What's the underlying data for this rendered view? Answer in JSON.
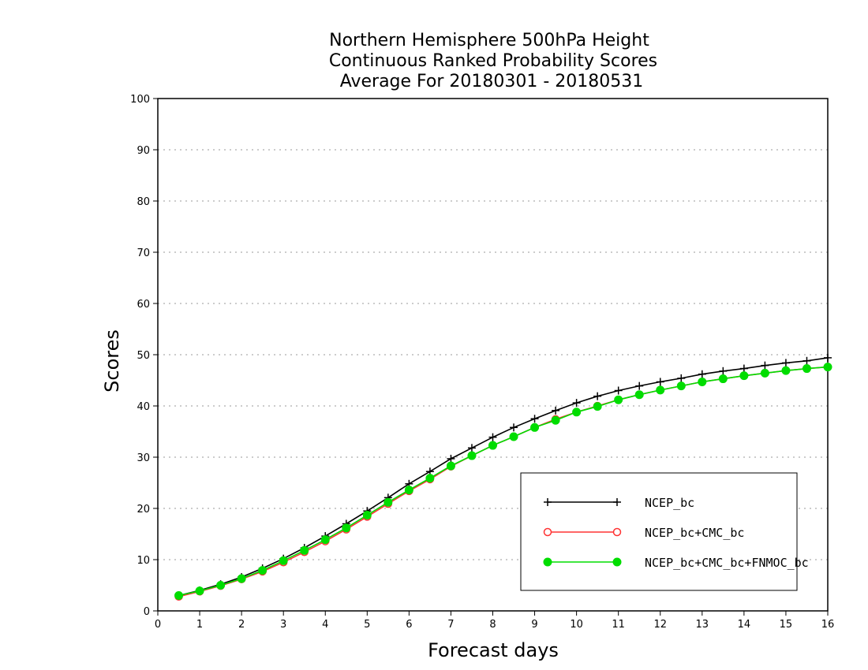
{
  "chart_data": {
    "type": "line",
    "title": [
      "Northern Hemisphere 500hPa Height",
      "Continuous Ranked Probability Scores",
      "Average For 20180301 - 20180531"
    ],
    "xlabel": "Forecast days",
    "ylabel": "Scores",
    "xlim": [
      0,
      16
    ],
    "ylim": [
      0,
      100
    ],
    "xticks": [
      "0",
      "1",
      "2",
      "3",
      "4",
      "5",
      "6",
      "7",
      "8",
      "9",
      "10",
      "11",
      "12",
      "13",
      "14",
      "15",
      "16"
    ],
    "yticks": [
      "0",
      "10",
      "20",
      "30",
      "40",
      "50",
      "60",
      "70",
      "80",
      "90",
      "100"
    ],
    "grid": "horizontal dotted",
    "legend_position": "bottom-right",
    "x": [
      0.5,
      1,
      1.5,
      2,
      2.5,
      3,
      3.5,
      4,
      4.5,
      5,
      5.5,
      6,
      6.5,
      7,
      7.5,
      8,
      8.5,
      9,
      9.5,
      10,
      10.5,
      11,
      11.5,
      12,
      12.5,
      13,
      13.5,
      14,
      14.5,
      15,
      15.5,
      16
    ],
    "series": [
      {
        "name": "NCEP_bc",
        "color": "#000000",
        "marker": "plus",
        "values": [
          3.0,
          4.0,
          5.2,
          6.6,
          8.3,
          10.2,
          12.3,
          14.6,
          17.0,
          19.5,
          22.1,
          24.8,
          27.2,
          29.7,
          31.8,
          33.9,
          35.8,
          37.5,
          39.1,
          40.6,
          41.9,
          43.0,
          43.9,
          44.7,
          45.4,
          46.2,
          46.8,
          47.3,
          47.9,
          48.4,
          48.8,
          49.4
        ]
      },
      {
        "name": "NCEP_bc+CMC_bc",
        "color": "#ff3333",
        "marker": "open-circle",
        "values": [
          2.8,
          3.8,
          4.9,
          6.2,
          7.7,
          9.5,
          11.5,
          13.6,
          15.9,
          18.4,
          20.9,
          23.4,
          25.7,
          28.2,
          30.3,
          32.3,
          34.0,
          35.8,
          37.4,
          38.8,
          40.0,
          41.2,
          42.2,
          43.1,
          43.9,
          44.7,
          45.3,
          45.9,
          46.4,
          46.9,
          47.3,
          47.6
        ]
      },
      {
        "name": "NCEP_bc+CMC_bc+FNMOC_bc",
        "color": "#00dd00",
        "marker": "filled-circle",
        "values": [
          3.0,
          3.9,
          5.0,
          6.3,
          7.9,
          9.8,
          11.8,
          13.9,
          16.2,
          18.7,
          21.2,
          23.6,
          25.9,
          28.3,
          30.3,
          32.3,
          34.0,
          35.8,
          37.2,
          38.8,
          39.9,
          41.2,
          42.2,
          43.1,
          43.9,
          44.7,
          45.3,
          45.9,
          46.4,
          46.9,
          47.3,
          47.6
        ]
      }
    ]
  }
}
